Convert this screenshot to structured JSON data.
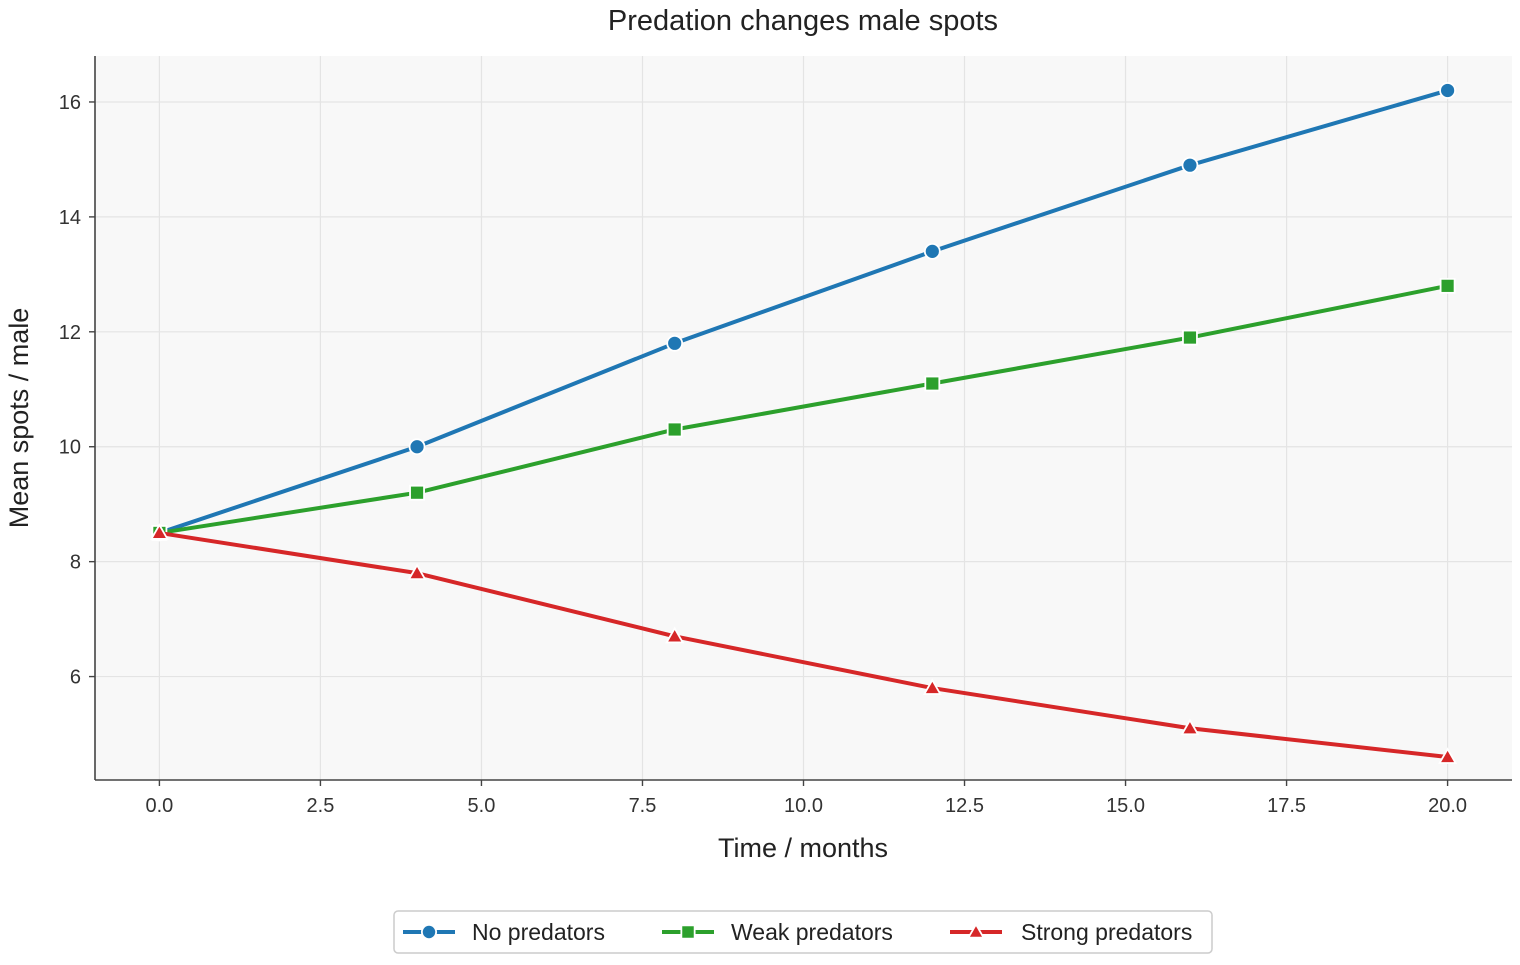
{
  "chart_data": {
    "type": "line",
    "title": "Predation changes male spots",
    "xlabel": "Time / months",
    "ylabel": "Mean spots / male",
    "x": [
      0,
      4,
      8,
      12,
      16,
      20
    ],
    "xlim": [
      -1,
      21
    ],
    "ylim": [
      4.2,
      16.8
    ],
    "xticks": [
      0.0,
      2.5,
      5.0,
      7.5,
      10.0,
      12.5,
      15.0,
      17.5,
      20.0
    ],
    "xtick_labels": [
      "0.0",
      "2.5",
      "5.0",
      "7.5",
      "10.0",
      "12.5",
      "15.0",
      "17.5",
      "20.0"
    ],
    "yticks": [
      6,
      8,
      10,
      12,
      14,
      16
    ],
    "ytick_labels": [
      "6",
      "8",
      "10",
      "12",
      "14",
      "16"
    ],
    "grid": true,
    "legend_position": "bottom-center",
    "background_color": "#f8f8f8",
    "series": [
      {
        "name": "No predators",
        "values": [
          8.5,
          10.0,
          11.8,
          13.4,
          14.9,
          16.2
        ],
        "color": "#1f77b4",
        "marker": "circle"
      },
      {
        "name": "Weak predators",
        "values": [
          8.5,
          9.2,
          10.3,
          11.1,
          11.9,
          12.8
        ],
        "color": "#2ca02c",
        "marker": "square"
      },
      {
        "name": "Strong predators",
        "values": [
          8.5,
          7.8,
          6.7,
          5.8,
          5.1,
          4.6
        ],
        "color": "#d62728",
        "marker": "triangle"
      }
    ]
  }
}
